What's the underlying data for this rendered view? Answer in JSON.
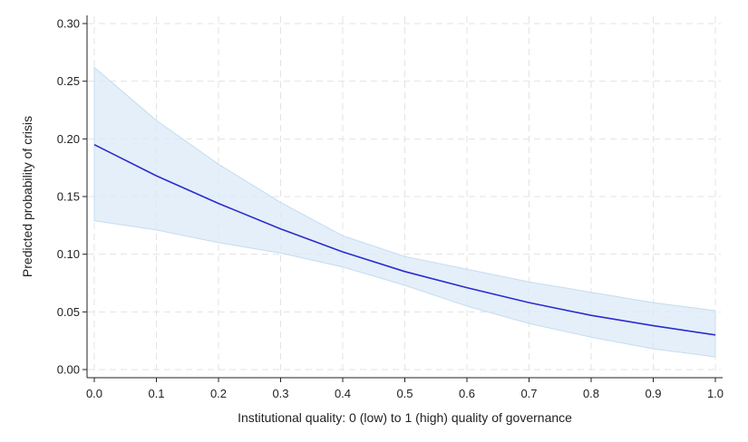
{
  "chart_data": {
    "type": "line",
    "title": "",
    "xlabel": "Institutional quality: 0 (low) to 1 (high) quality of governance",
    "ylabel": "Predicted probability of crisis",
    "xlim": [
      0.0,
      1.0
    ],
    "ylim": [
      0.0,
      0.3
    ],
    "x_ticks": [
      "0.0",
      "0.1",
      "0.2",
      "0.3",
      "0.4",
      "0.5",
      "0.6",
      "0.7",
      "0.8",
      "0.9",
      "1.0"
    ],
    "y_ticks": [
      "0.00",
      "0.05",
      "0.10",
      "0.15",
      "0.20",
      "0.25",
      "0.30"
    ],
    "grid": true,
    "series": [
      {
        "name": "Predicted probability",
        "x": [
          0.0,
          0.1,
          0.2,
          0.3,
          0.4,
          0.5,
          0.6,
          0.7,
          0.8,
          0.9,
          1.0
        ],
        "values": [
          0.195,
          0.168,
          0.144,
          0.122,
          0.102,
          0.085,
          0.071,
          0.058,
          0.047,
          0.038,
          0.03
        ],
        "ci_lower": [
          0.129,
          0.121,
          0.11,
          0.101,
          0.089,
          0.073,
          0.055,
          0.04,
          0.028,
          0.018,
          0.011
        ],
        "ci_upper": [
          0.262,
          0.216,
          0.178,
          0.145,
          0.116,
          0.098,
          0.087,
          0.076,
          0.067,
          0.058,
          0.051
        ]
      }
    ],
    "colors": {
      "line": "#2b2bd0",
      "band_fill": "#dbeaf7",
      "band_edge": "#c4dcf1",
      "grid": "#e3e3e3",
      "axis": "#222222"
    }
  }
}
